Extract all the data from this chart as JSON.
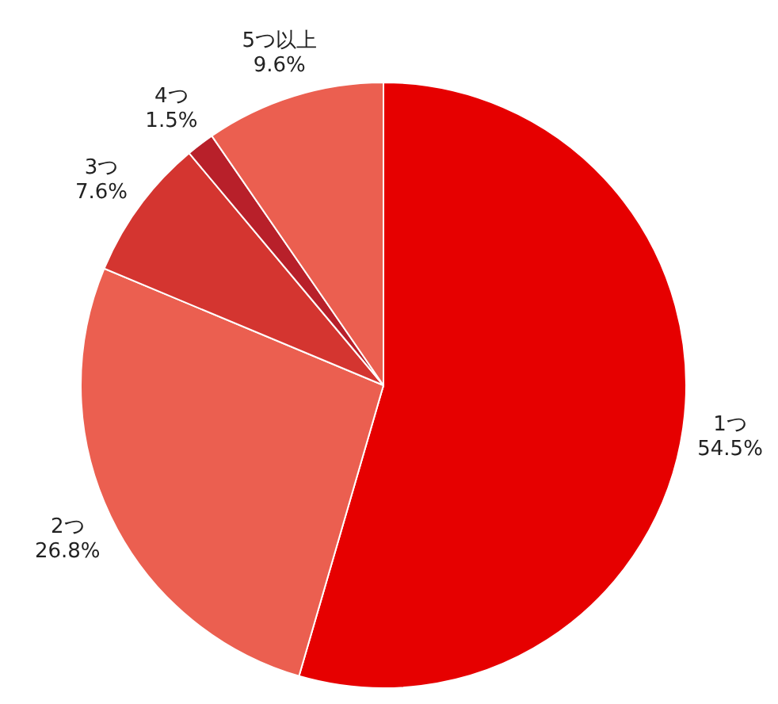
{
  "chart_data": {
    "type": "pie",
    "categories": [
      "1つ",
      "2つ",
      "3つ",
      "4つ",
      "5つ以上"
    ],
    "values": [
      54.5,
      26.8,
      7.6,
      1.5,
      9.6
    ],
    "value_labels": [
      "54.5%",
      "26.8%",
      "7.6%",
      "1.5%",
      "9.6%"
    ],
    "colors": [
      "#e60000",
      "#eb5f50",
      "#d43530",
      "#b8202a",
      "#eb5f50"
    ]
  }
}
